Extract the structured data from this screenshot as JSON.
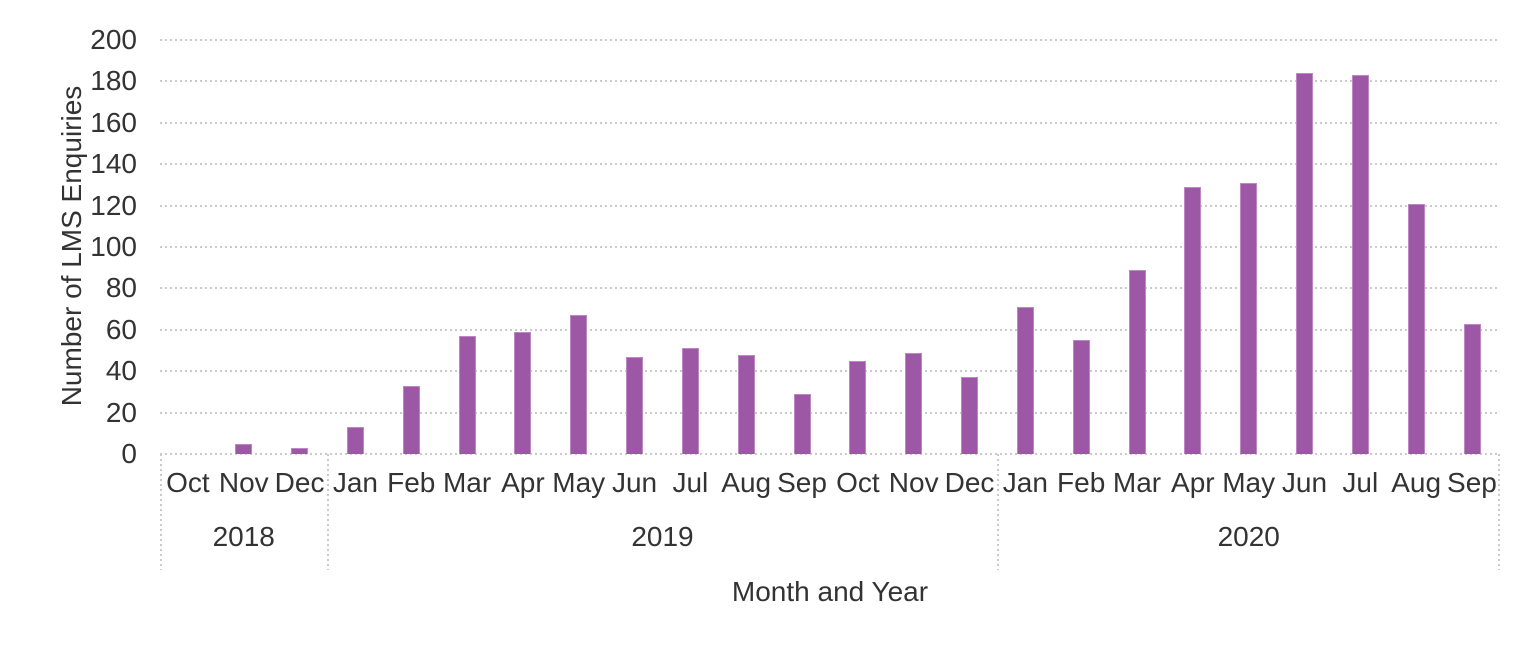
{
  "chart_data": {
    "type": "bar",
    "title": "",
    "xlabel": "Month and Year",
    "ylabel": "Number of LMS Enquiries",
    "ylim": [
      0,
      200
    ],
    "ytick_step": 20,
    "yticks": [
      0,
      20,
      40,
      60,
      80,
      100,
      120,
      140,
      160,
      180,
      200
    ],
    "grid": "horizontal-dotted",
    "legend": "none",
    "bar_fill_color": "#9c57a5",
    "bar_border_color": "#bd87c3",
    "gridline_color": "#cbc9c9",
    "text_color": "#333333",
    "groups": [
      {
        "year": "2018",
        "months": [
          "Oct",
          "Nov",
          "Dec"
        ],
        "values": [
          0,
          5,
          3
        ]
      },
      {
        "year": "2019",
        "months": [
          "Jan",
          "Feb",
          "Mar",
          "Apr",
          "May",
          "Jun",
          "Jul",
          "Aug",
          "Sep",
          "Oct",
          "Nov",
          "Dec"
        ],
        "values": [
          13,
          33,
          57,
          59,
          67,
          47,
          51,
          48,
          29,
          45,
          49,
          37
        ]
      },
      {
        "year": "2020",
        "months": [
          "Jan",
          "Feb",
          "Mar",
          "Apr",
          "May",
          "Jun",
          "Jul",
          "Aug",
          "Sep"
        ],
        "values": [
          71,
          55,
          89,
          129,
          131,
          184,
          183,
          121,
          63
        ]
      }
    ],
    "categories": [
      "Oct 2018",
      "Nov 2018",
      "Dec 2018",
      "Jan 2019",
      "Feb 2019",
      "Mar 2019",
      "Apr 2019",
      "May 2019",
      "Jun 2019",
      "Jul 2019",
      "Aug 2019",
      "Sep 2019",
      "Oct 2019",
      "Nov 2019",
      "Dec 2019",
      "Jan 2020",
      "Feb 2020",
      "Mar 2020",
      "Apr 2020",
      "May 2020",
      "Jun 2020",
      "Jul 2020",
      "Aug 2020",
      "Sep 2020"
    ],
    "values": [
      0,
      5,
      3,
      13,
      33,
      57,
      59,
      67,
      47,
      51,
      48,
      29,
      45,
      49,
      37,
      71,
      55,
      89,
      129,
      131,
      184,
      183,
      121,
      63
    ]
  }
}
